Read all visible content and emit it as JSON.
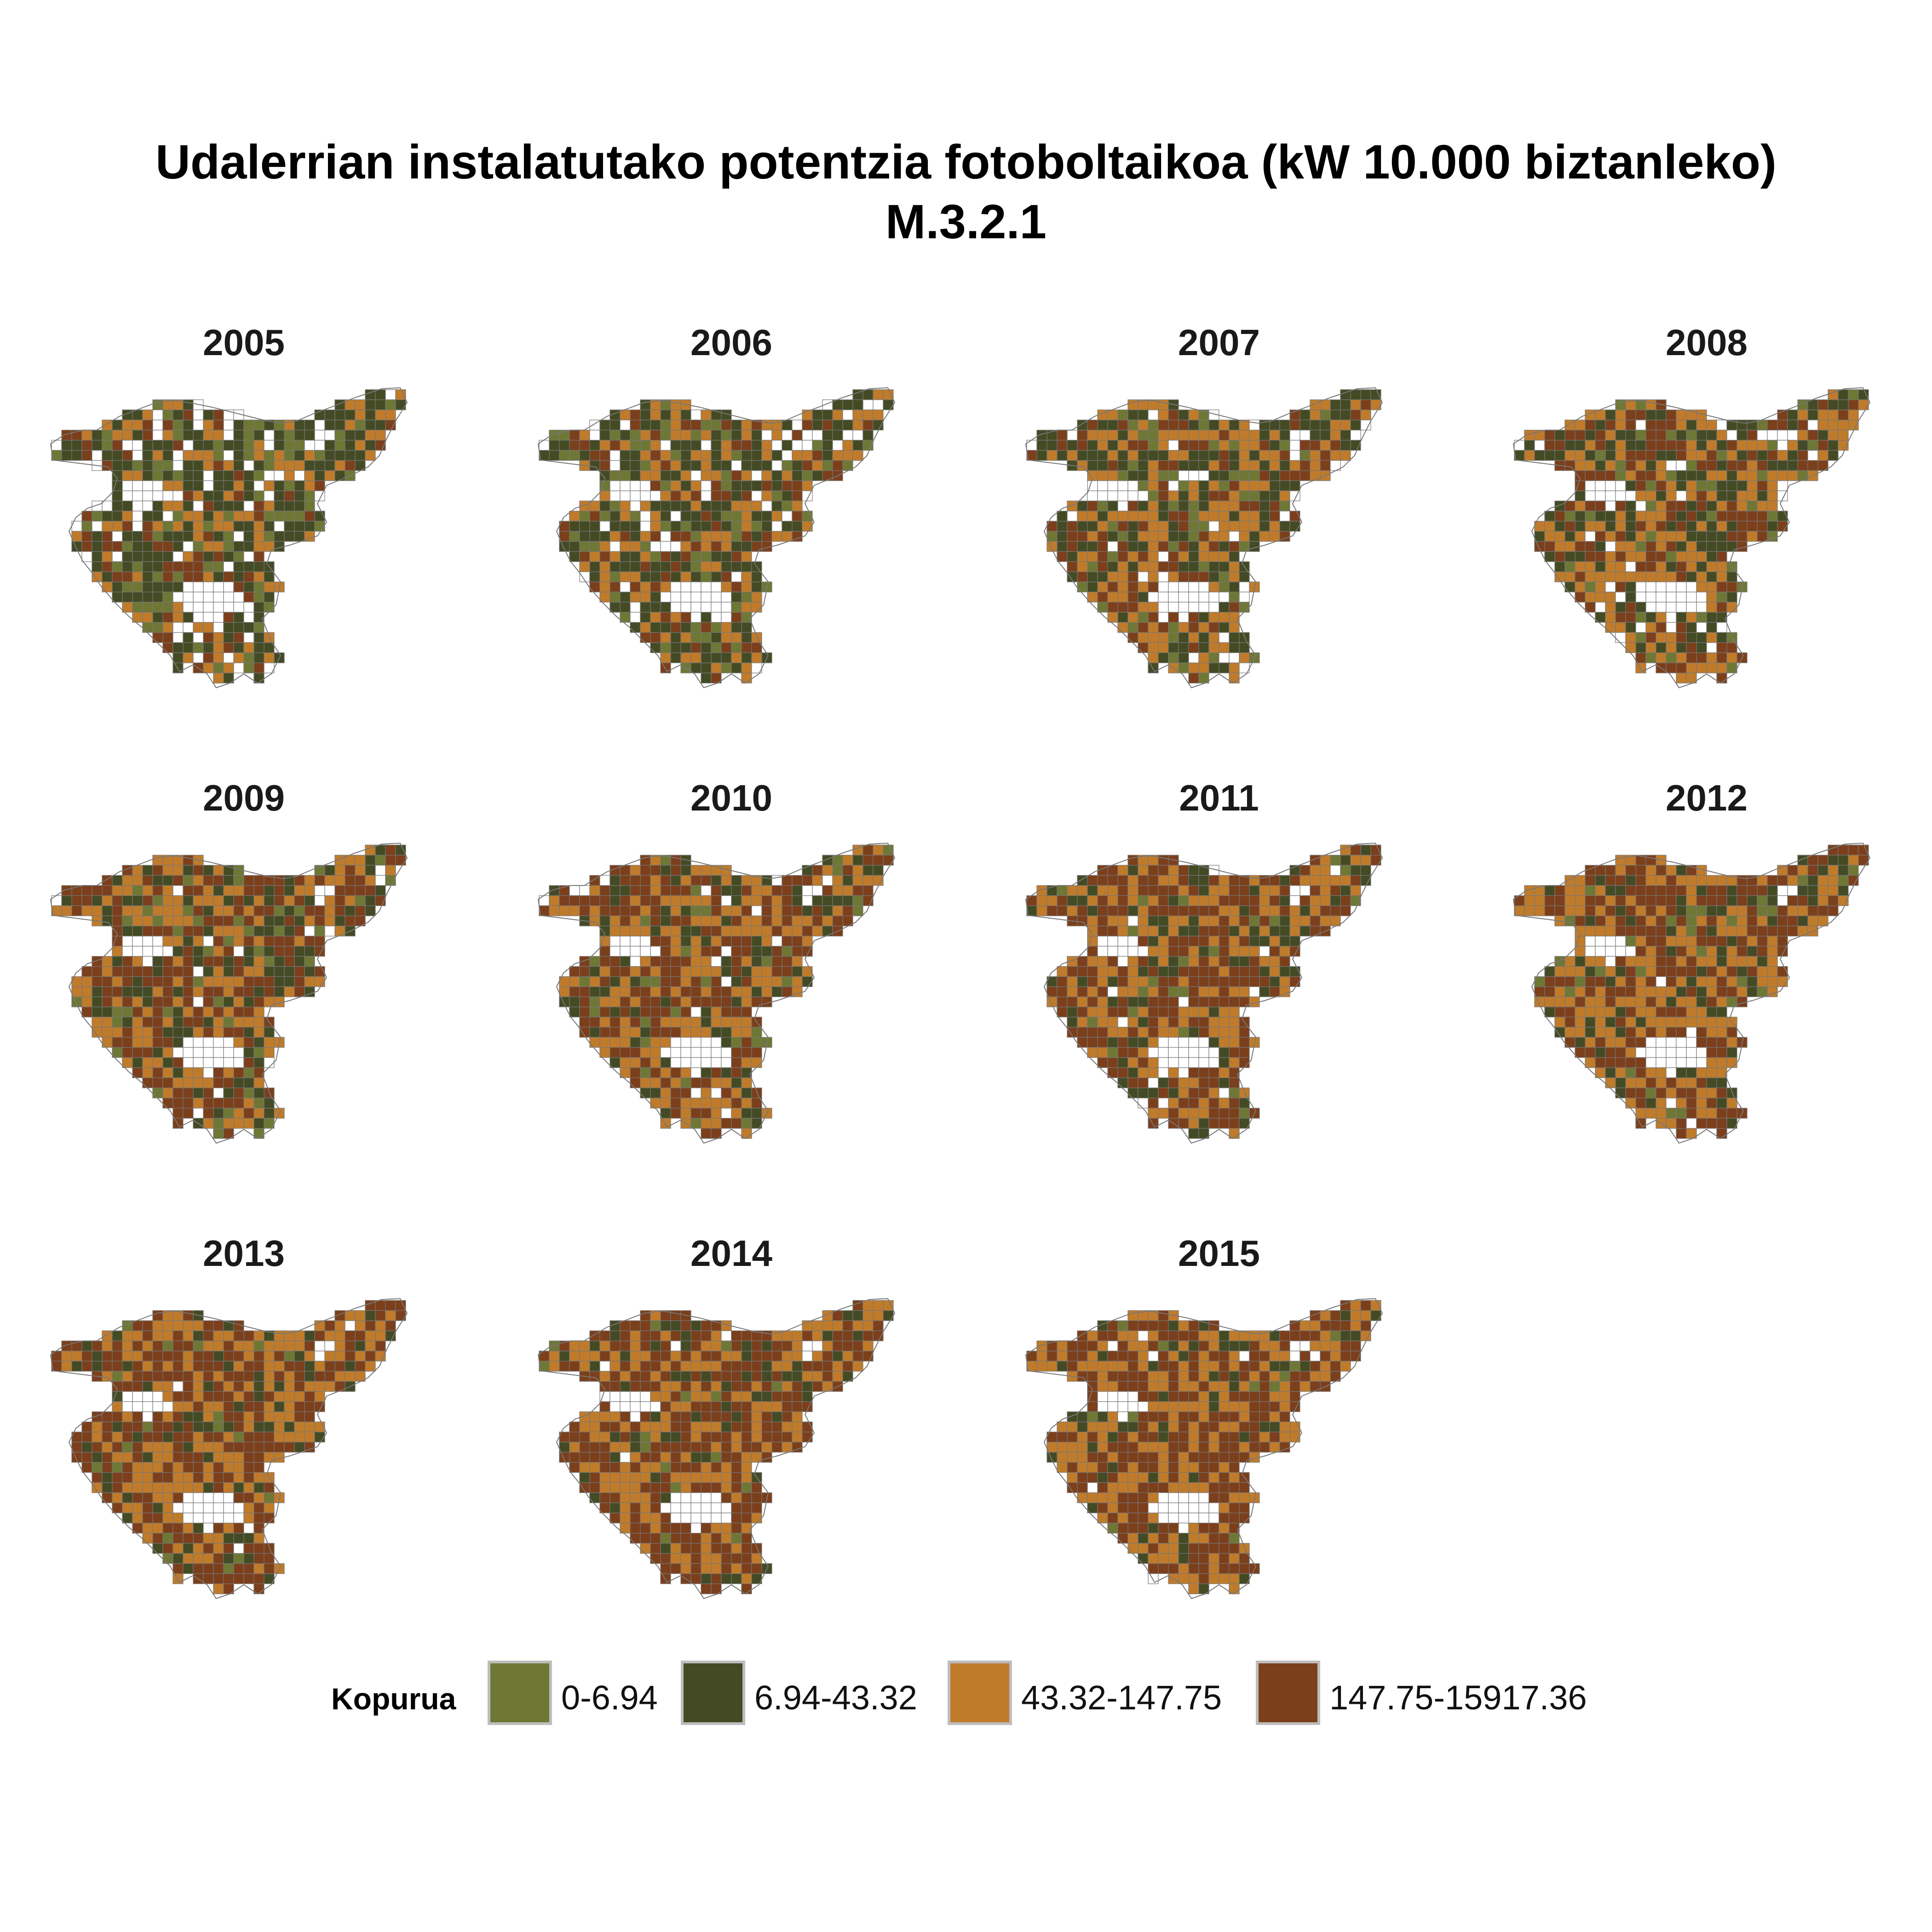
{
  "title": {
    "line1": "Udalerrian instalatutako potentzia fotoboltaikoa (kW 10.000 biztanleko)",
    "line2": "M.3.2.1"
  },
  "legend": {
    "title": "Kopurua",
    "items": [
      {
        "label": "0-6.94",
        "color": "#6f7735"
      },
      {
        "label": "6.94-43.32",
        "color": "#444b24"
      },
      {
        "label": "43.32-147.75",
        "color": "#c07b2a"
      },
      {
        "label": "147.75-15917.36",
        "color": "#7c3f1b"
      }
    ]
  },
  "colors": {
    "no_data": "#ffffff",
    "border": "#777777"
  },
  "panels": [
    {
      "year": "2005",
      "shares": [
        0.18,
        0.42,
        0.18,
        0.1
      ],
      "blank": 0.12
    },
    {
      "year": "2006",
      "shares": [
        0.12,
        0.4,
        0.24,
        0.14
      ],
      "blank": 0.1
    },
    {
      "year": "2007",
      "shares": [
        0.1,
        0.34,
        0.3,
        0.2
      ],
      "blank": 0.06
    },
    {
      "year": "2008",
      "shares": [
        0.09,
        0.3,
        0.32,
        0.25
      ],
      "blank": 0.04
    },
    {
      "year": "2009",
      "shares": [
        0.07,
        0.25,
        0.33,
        0.33
      ],
      "blank": 0.02
    },
    {
      "year": "2010",
      "shares": [
        0.05,
        0.22,
        0.35,
        0.36
      ],
      "blank": 0.02
    },
    {
      "year": "2011",
      "shares": [
        0.04,
        0.2,
        0.36,
        0.38
      ],
      "blank": 0.02
    },
    {
      "year": "2012",
      "shares": [
        0.04,
        0.18,
        0.36,
        0.4
      ],
      "blank": 0.02
    },
    {
      "year": "2013",
      "shares": [
        0.04,
        0.16,
        0.36,
        0.43
      ],
      "blank": 0.01
    },
    {
      "year": "2014",
      "shares": [
        0.03,
        0.15,
        0.37,
        0.44
      ],
      "blank": 0.01
    },
    {
      "year": "2015",
      "shares": [
        0.03,
        0.14,
        0.37,
        0.45
      ],
      "blank": 0.01
    }
  ]
}
